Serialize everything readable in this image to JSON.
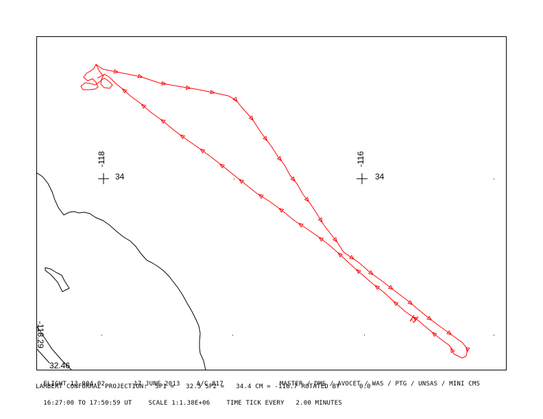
{
  "map": {
    "grid_marks": [
      {
        "lon": "-118",
        "lat": "34"
      },
      {
        "lon": "-116",
        "lat": "34"
      }
    ],
    "corner_lon": "-118.29",
    "corner_lat": "32.46",
    "track_color": "#ff0000",
    "coast_color": "#000000",
    "track_annotation": "21"
  },
  "footer": {
    "flight": "FLIGHT 13-004-02",
    "date": "17 JUNE 2013",
    "aircraft": "A/C 817",
    "instruments": "MASTER / DMS / AVOCET / WAS / PTG / UNSAS / MINI CMS",
    "projection": "LAMBERT CONFORMAL PROJECTION:  SP1 =   32.5 SP2 =   34.4 CM = -116.7 ROTATED BY     0.0",
    "time_range": "16:27:00 TO 17:50:59 UT",
    "scale": "SCALE 1:1.38E+06",
    "time_tick": "TIME TICK EVERY   2.00 MINUTES"
  }
}
